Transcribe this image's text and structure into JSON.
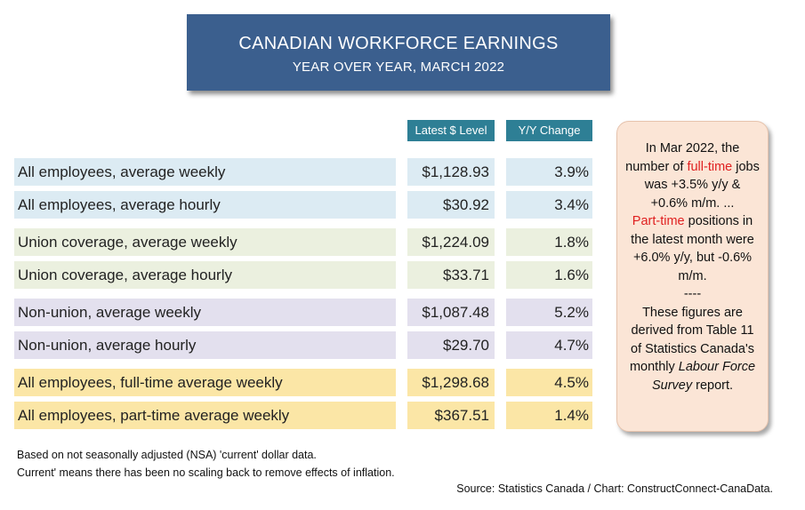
{
  "title": "CANADIAN WORKFORCE EARNINGS",
  "subtitle": "YEAR OVER YEAR, MARCH 2022",
  "columns": {
    "level": "Latest $ Level",
    "change": "Y/Y Change"
  },
  "colors": {
    "blue_rows": "#dcebf3",
    "green_rows": "#ebf0df",
    "purple_rows": "#e3e0ee",
    "yellow_rows": "#fbe6a6",
    "title_bg": "#3b5f8e",
    "header_bg": "#2e7f95",
    "callout_bg": "#fbe5d6",
    "highlight": "#e02020"
  },
  "chart_data": {
    "type": "table",
    "columns": [
      "",
      "Latest $ Level",
      "Y/Y Change"
    ],
    "rows": [
      {
        "label": "All employees, average weekly",
        "level": "$1,128.93",
        "change": "3.9%",
        "group": "blue"
      },
      {
        "label": "All employees, average hourly",
        "level": "$30.92",
        "change": "3.4%",
        "group": "blue"
      },
      {
        "label": "Union coverage, average weekly",
        "level": "$1,224.09",
        "change": "1.8%",
        "group": "green"
      },
      {
        "label": "Union coverage, average hourly",
        "level": "$33.71",
        "change": "1.6%",
        "group": "green"
      },
      {
        "label": "Non-union, average weekly",
        "level": "$1,087.48",
        "change": "5.2%",
        "group": "purple"
      },
      {
        "label": "Non-union, average hourly",
        "level": "$29.70",
        "change": "4.7%",
        "group": "purple"
      },
      {
        "label": "All employees, full-time average weekly",
        "level": "$1,298.68",
        "change": "4.5%",
        "group": "yellow"
      },
      {
        "label": "All employees, part-time average weekly",
        "level": "$367.51",
        "change": "1.4%",
        "group": "yellow"
      }
    ]
  },
  "callout": {
    "p1_a": "In Mar 2022, the number of ",
    "p1_red": "full-time",
    "p1_b": " jobs was +3.5% y/y & +0.6% m/m. ...",
    "p2_red": "Part-time",
    "p2_b": " positions in the latest month were +6.0% y/y, but -0.6% m/m.",
    "separator": "----",
    "p3_a": "These figures are derived from Table 11 of Statistics Canada's monthly ",
    "p3_ital": "Labour Force Survey",
    "p3_b": " report."
  },
  "footnotes": {
    "line1": "Based on not seasonally adjusted (NSA) 'current' dollar data.",
    "line2": "Current' means there has been no scaling back to remove effects of inflation."
  },
  "source": "Source: Statistics Canada / Chart: ConstructConnect-CanaData."
}
